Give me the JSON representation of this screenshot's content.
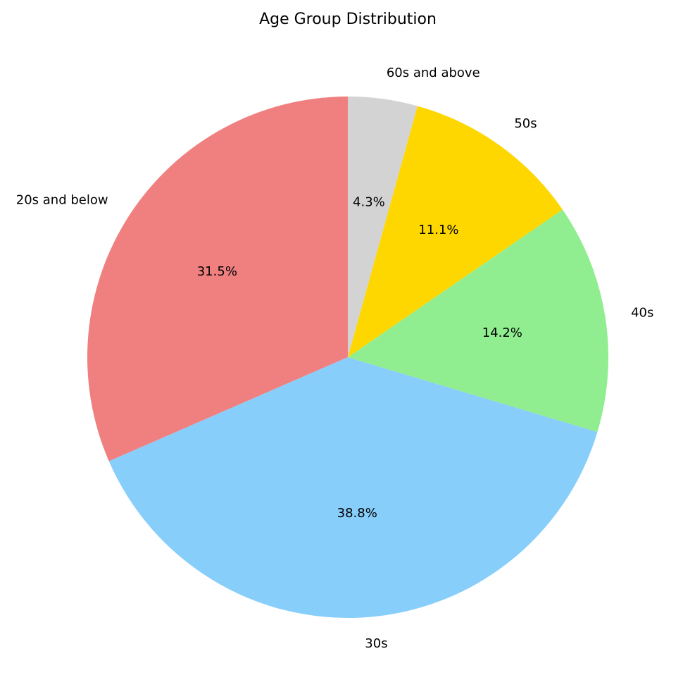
{
  "chart_data": {
    "type": "pie",
    "title": "Age Group Distribution",
    "slices": [
      {
        "label": "20s and below",
        "value": 31.5,
        "pct_label": "31.5%",
        "color": "#F08080"
      },
      {
        "label": "30s",
        "value": 38.8,
        "pct_label": "38.8%",
        "color": "#87CEFA"
      },
      {
        "label": "40s",
        "value": 14.2,
        "pct_label": "14.2%",
        "color": "#90EE90"
      },
      {
        "label": "50s",
        "value": 11.1,
        "pct_label": "11.1%",
        "color": "#FFD700"
      },
      {
        "label": "60s and above",
        "value": 4.3,
        "pct_label": "4.3%",
        "color": "#D3D3D3"
      }
    ],
    "start_angle_deg": 90,
    "direction": "counterclockwise"
  }
}
